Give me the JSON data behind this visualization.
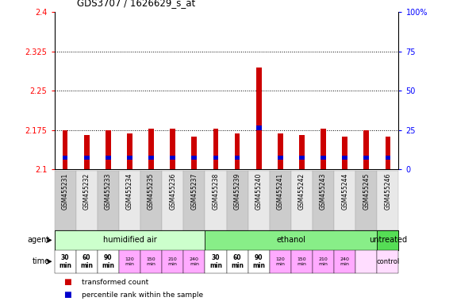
{
  "title": "GDS3707 / 1626629_s_at",
  "samples": [
    "GSM455231",
    "GSM455232",
    "GSM455233",
    "GSM455234",
    "GSM455235",
    "GSM455236",
    "GSM455237",
    "GSM455238",
    "GSM455239",
    "GSM455240",
    "GSM455241",
    "GSM455242",
    "GSM455243",
    "GSM455244",
    "GSM455245",
    "GSM455246"
  ],
  "red_tops": [
    2.175,
    2.165,
    2.175,
    2.168,
    2.178,
    2.178,
    2.162,
    2.178,
    2.168,
    2.295,
    2.168,
    2.165,
    2.178,
    2.162,
    2.175,
    2.162
  ],
  "blue_positions": [
    2.118,
    2.118,
    2.118,
    2.118,
    2.118,
    2.118,
    2.118,
    2.118,
    2.118,
    2.175,
    2.118,
    2.118,
    2.118,
    2.118,
    2.118,
    2.118
  ],
  "blue_heights": [
    0.008,
    0.008,
    0.008,
    0.008,
    0.008,
    0.008,
    0.008,
    0.008,
    0.008,
    0.008,
    0.008,
    0.008,
    0.008,
    0.008,
    0.008,
    0.008
  ],
  "ymin": 2.1,
  "ymax": 2.4,
  "y_ticks_left": [
    2.1,
    2.175,
    2.25,
    2.325,
    2.4
  ],
  "y_ticks_right": [
    0,
    25,
    50,
    75,
    100
  ],
  "dotted_lines": [
    2.175,
    2.25,
    2.325
  ],
  "bar_width": 0.25,
  "agent_groups": [
    {
      "label": "humidified air",
      "start": 0,
      "end": 7,
      "color": "#ccffcc"
    },
    {
      "label": "ethanol",
      "start": 7,
      "end": 15,
      "color": "#88ee88"
    },
    {
      "label": "untreated",
      "start": 15,
      "end": 16,
      "color": "#55dd55"
    }
  ],
  "time_labels": [
    "30\nmin",
    "60\nmin",
    "90\nmin",
    "120\nmin",
    "150\nmin",
    "210\nmin",
    "240\nmin",
    "30\nmin",
    "60\nmin",
    "90\nmin",
    "120\nmin",
    "150\nmin",
    "210\nmin",
    "240\nmin",
    "",
    ""
  ],
  "time_colors_bold": [
    true,
    true,
    true,
    false,
    false,
    false,
    false,
    true,
    true,
    true,
    false,
    false,
    false,
    false,
    false,
    false
  ],
  "time_bg_colors": [
    "#ffffff",
    "#ffffff",
    "#ffffff",
    "#ffaaff",
    "#ffaaff",
    "#ffaaff",
    "#ffaaff",
    "#ffffff",
    "#ffffff",
    "#ffffff",
    "#ffaaff",
    "#ffaaff",
    "#ffaaff",
    "#ffaaff",
    "#ffddff",
    "#ffddff"
  ],
  "legend_items": [
    {
      "color": "#cc0000",
      "label": "transformed count"
    },
    {
      "color": "#0000cc",
      "label": "percentile rank within the sample"
    }
  ],
  "bar_color_red": "#cc0000",
  "bar_color_blue": "#0000cc",
  "bar_bottom": 2.1,
  "sample_bg_colors": [
    "#cccccc",
    "#e8e8e8",
    "#cccccc",
    "#e8e8e8",
    "#cccccc",
    "#e8e8e8",
    "#cccccc",
    "#e8e8e8",
    "#cccccc",
    "#e8e8e8",
    "#cccccc",
    "#e8e8e8",
    "#cccccc",
    "#e8e8e8",
    "#cccccc",
    "#e8e8e8"
  ],
  "control_label": "control"
}
